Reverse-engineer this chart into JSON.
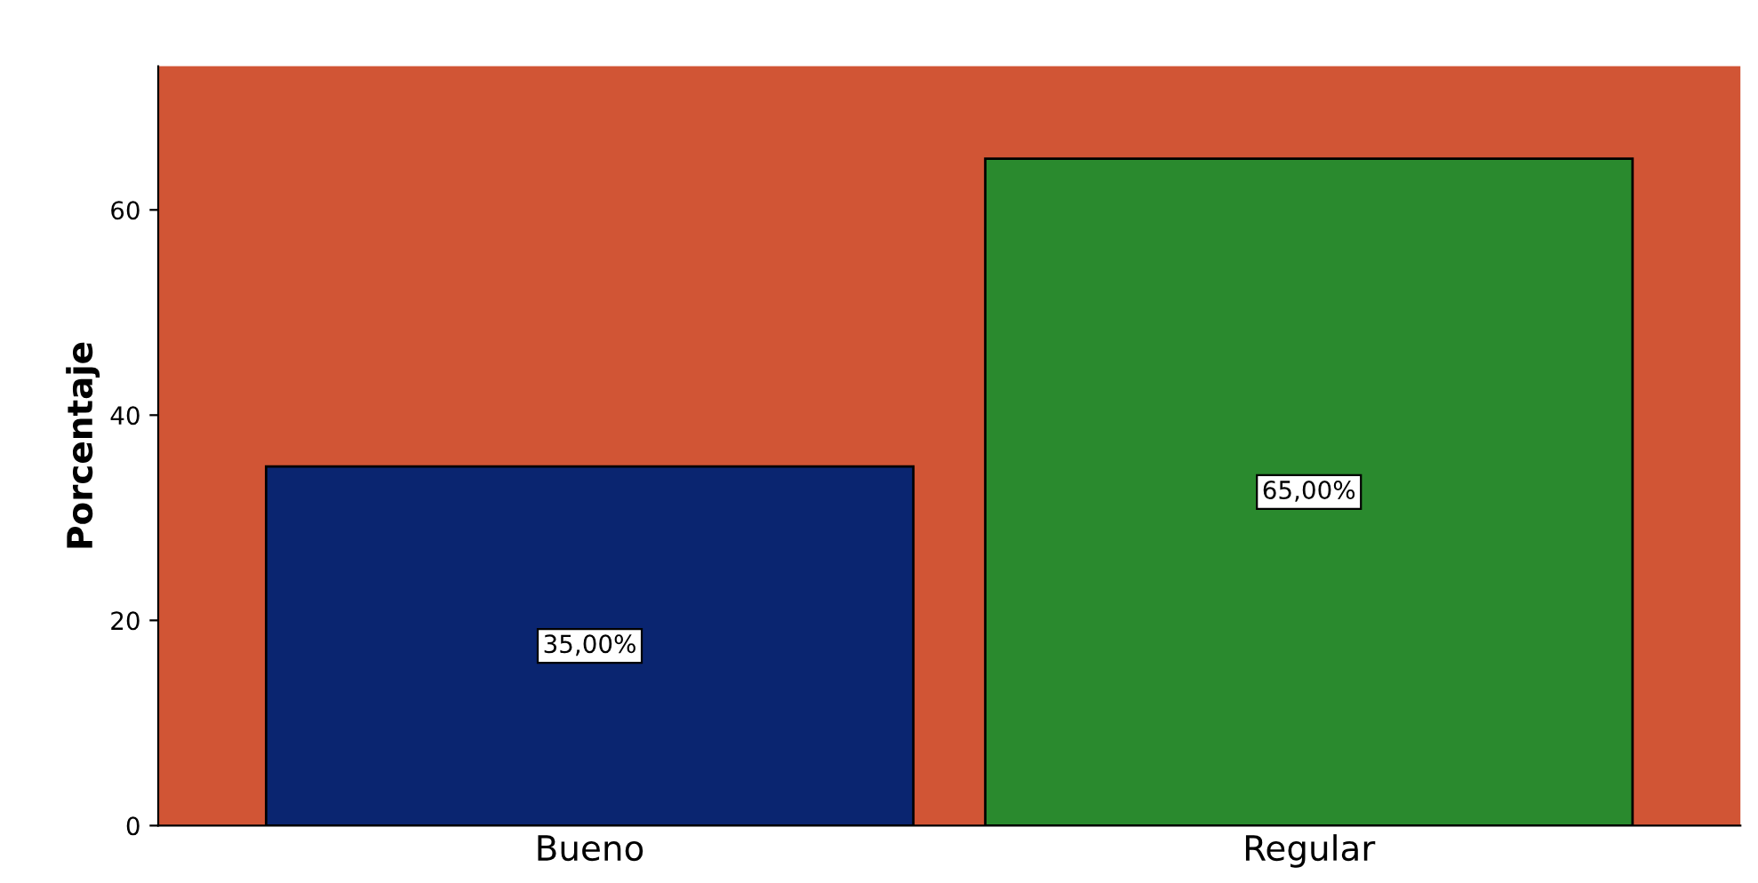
{
  "chart_data": {
    "type": "bar",
    "categories": [
      "Bueno",
      "Regular"
    ],
    "values": [
      35,
      65
    ],
    "colors": [
      "#0a2570",
      "#2a8a2e"
    ],
    "value_labels": [
      "35,00%",
      "65,00%"
    ],
    "ylabel": "Porcentaje",
    "ylim": [
      0,
      74
    ],
    "yticks": [
      0,
      20,
      40,
      60
    ],
    "grid": false,
    "legend": false
  }
}
